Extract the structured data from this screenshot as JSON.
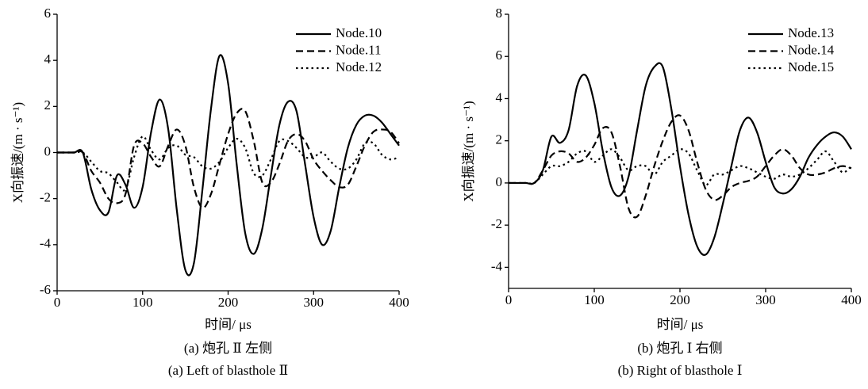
{
  "chart_data": [
    {
      "type": "line",
      "caption": "(a) 炮孔 Ⅱ 左侧",
      "caption_en": "(a) Left of blasthole Ⅱ",
      "xlabel": "时间/ μs",
      "ylabel": "X向振速/(m · s⁻¹)",
      "xlim": [
        0,
        400
      ],
      "xticks": [
        0,
        100,
        200,
        300,
        400
      ],
      "ylim": [
        -6,
        6
      ],
      "yticks": [
        -6,
        -4,
        -2,
        0,
        2,
        4,
        6
      ],
      "grid": false,
      "legend": "upper right",
      "x": [
        0,
        10,
        20,
        30,
        40,
        50,
        60,
        70,
        80,
        90,
        100,
        110,
        120,
        130,
        140,
        150,
        160,
        170,
        180,
        190,
        200,
        210,
        220,
        230,
        240,
        250,
        260,
        270,
        280,
        290,
        300,
        310,
        320,
        330,
        340,
        350,
        360,
        370,
        380,
        390,
        400
      ],
      "series": [
        {
          "name": "Node.10",
          "color": "#000000",
          "dash": "solid",
          "values": [
            0,
            0,
            0,
            0,
            -1.6,
            -2.5,
            -2.6,
            -1.0,
            -1.4,
            -2.4,
            -1.5,
            0.9,
            2.3,
            1.0,
            -2.5,
            -5.1,
            -4.8,
            -1.6,
            1.9,
            4.2,
            3.0,
            -0.5,
            -3.5,
            -4.4,
            -3.3,
            -1.0,
            1.2,
            2.2,
            1.8,
            -0.5,
            -2.8,
            -4.0,
            -3.4,
            -1.5,
            0.2,
            1.2,
            1.6,
            1.6,
            1.3,
            0.8,
            0.3
          ]
        },
        {
          "name": "Node.11",
          "color": "#000000",
          "dash": "dashed",
          "values": [
            0,
            0,
            0,
            0,
            -0.8,
            -1.3,
            -2.0,
            -2.2,
            -1.8,
            0.3,
            0.4,
            -0.2,
            -0.6,
            0.3,
            1.0,
            0.3,
            -1.5,
            -2.4,
            -1.8,
            -0.5,
            0.8,
            1.7,
            1.8,
            0.5,
            -1.3,
            -1.3,
            -0.5,
            0.5,
            0.8,
            0.5,
            -0.3,
            -0.8,
            -1.2,
            -1.5,
            -1.4,
            -0.6,
            0.3,
            0.9,
            1.0,
            0.9,
            0.4
          ]
        },
        {
          "name": "Node.12",
          "color": "#000000",
          "dash": "dotted",
          "values": [
            0,
            0,
            0,
            0,
            -0.4,
            -0.8,
            -0.9,
            -1.3,
            -1.6,
            -0.2,
            0.7,
            0.1,
            -0.3,
            0.2,
            0.3,
            -0.1,
            -0.2,
            -0.6,
            -0.7,
            -0.4,
            0.2,
            0.6,
            0.2,
            -0.9,
            -1.0,
            -0.3,
            0.5,
            0.5,
            0.2,
            -0.2,
            -0.2,
            0.0,
            -0.4,
            -0.7,
            -0.7,
            -0.3,
            0.4,
            0.4,
            -0.1,
            -0.3,
            -0.2
          ]
        }
      ]
    },
    {
      "type": "line",
      "caption": "(b) 炮孔 Ⅰ 右侧",
      "caption_en": "(b) Right of blasthole Ⅰ",
      "xlabel": "时间/ μs",
      "ylabel": "X向振速/(m · s⁻¹)",
      "xlim": [
        0,
        400
      ],
      "xticks": [
        0,
        100,
        200,
        300,
        400
      ],
      "ylim": [
        -5,
        8
      ],
      "yticks": [
        -4,
        -2,
        0,
        2,
        4,
        6,
        8
      ],
      "grid": false,
      "legend": "upper right",
      "x": [
        0,
        10,
        20,
        30,
        40,
        50,
        60,
        70,
        80,
        90,
        100,
        110,
        120,
        130,
        140,
        150,
        160,
        170,
        180,
        190,
        200,
        210,
        220,
        230,
        240,
        250,
        260,
        270,
        280,
        290,
        300,
        310,
        320,
        330,
        340,
        350,
        360,
        370,
        380,
        390,
        400
      ],
      "series": [
        {
          "name": "Node.13",
          "color": "#000000",
          "dash": "solid",
          "values": [
            0,
            0,
            0,
            0,
            0.6,
            2.2,
            1.9,
            2.5,
            4.6,
            5.1,
            3.8,
            1.5,
            -0.2,
            -0.6,
            0.3,
            2.5,
            4.6,
            5.5,
            5.5,
            3.5,
            0.8,
            -1.5,
            -3.0,
            -3.4,
            -2.6,
            -1.0,
            0.8,
            2.5,
            3.1,
            2.4,
            1.0,
            -0.2,
            -0.5,
            -0.3,
            0.3,
            1.2,
            1.8,
            2.2,
            2.4,
            2.2,
            1.6
          ]
        },
        {
          "name": "Node.14",
          "color": "#000000",
          "dash": "dashed",
          "values": [
            0,
            0,
            0,
            0,
            0.6,
            1.3,
            1.5,
            1.4,
            1.0,
            1.2,
            1.8,
            2.6,
            2.4,
            0.8,
            -1.2,
            -1.6,
            -0.6,
            0.8,
            2.0,
            2.9,
            3.2,
            2.5,
            1.0,
            -0.3,
            -0.8,
            -0.6,
            -0.2,
            0.0,
            0.1,
            0.3,
            0.8,
            1.3,
            1.6,
            1.3,
            0.7,
            0.4,
            0.4,
            0.5,
            0.7,
            0.8,
            0.7
          ]
        },
        {
          "name": "Node.15",
          "color": "#000000",
          "dash": "dotted",
          "values": [
            0,
            0,
            0,
            0,
            0.4,
            0.8,
            0.8,
            1.0,
            1.4,
            1.5,
            1.0,
            1.3,
            1.6,
            1.2,
            0.6,
            0.8,
            0.8,
            0.4,
            1.0,
            1.3,
            1.6,
            1.4,
            0.6,
            -0.1,
            0.4,
            0.4,
            0.6,
            0.8,
            0.7,
            0.5,
            0.3,
            0.2,
            0.4,
            0.3,
            0.4,
            0.7,
            1.1,
            1.5,
            1.0,
            0.5,
            0.8
          ]
        }
      ]
    }
  ]
}
